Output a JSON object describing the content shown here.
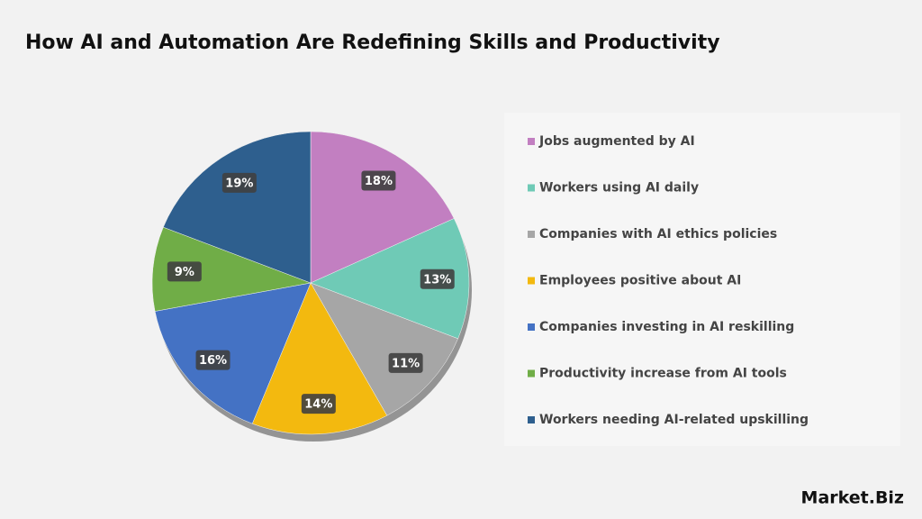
{
  "chart_data": {
    "type": "pie",
    "title": "How AI and Automation Are Redefining Skills and Productivity",
    "categories": [
      "Jobs augmented by AI",
      "Workers using AI daily",
      "Companies with AI ethics policies",
      "Employees positive about AI",
      "Companies investing in AI reskilling",
      "Productivity increase from AI tools",
      "Workers needing AI-related upskilling"
    ],
    "values": [
      18,
      13,
      11,
      14,
      16,
      9,
      19
    ],
    "value_labels": [
      "18%",
      "13%",
      "11%",
      "14%",
      "16%",
      "9%",
      "19%"
    ],
    "colors": [
      "#c27fc1",
      "#6fcab6",
      "#a6a6a6",
      "#f3b90f",
      "#4472c4",
      "#70ad47",
      "#2e5f8e"
    ],
    "legend": "right"
  },
  "logo": "Market.Biz"
}
